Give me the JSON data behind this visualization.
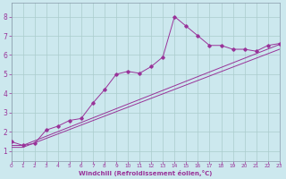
{
  "xlabel": "Windchill (Refroidissement éolien,°C)",
  "bg_color": "#cce8ee",
  "grid_color": "#aacccc",
  "line_color": "#993399",
  "xmin": 0,
  "xmax": 23,
  "ymin": 0.5,
  "ymax": 8.7,
  "yticks": [
    1,
    2,
    3,
    4,
    5,
    6,
    7,
    8
  ],
  "xticks": [
    0,
    1,
    2,
    3,
    4,
    5,
    6,
    7,
    8,
    9,
    10,
    11,
    12,
    13,
    14,
    15,
    16,
    17,
    18,
    19,
    20,
    21,
    22,
    23
  ],
  "series1_x": [
    0,
    1,
    2,
    3,
    4,
    5,
    6,
    7,
    8,
    9,
    10,
    11,
    12,
    13,
    14,
    15,
    16,
    17,
    18,
    19,
    20,
    21,
    22,
    23
  ],
  "series1_y": [
    1.5,
    1.3,
    1.4,
    2.1,
    2.3,
    2.6,
    2.7,
    3.5,
    4.2,
    5.0,
    5.15,
    5.05,
    5.4,
    5.9,
    8.0,
    7.5,
    7.0,
    6.5,
    6.5,
    6.3,
    6.3,
    6.2,
    6.5,
    6.6
  ],
  "series2_x": [
    0,
    1,
    23
  ],
  "series2_y": [
    1.3,
    1.3,
    6.55
  ],
  "series3_x": [
    0,
    1,
    23
  ],
  "series3_y": [
    1.2,
    1.2,
    6.3
  ]
}
